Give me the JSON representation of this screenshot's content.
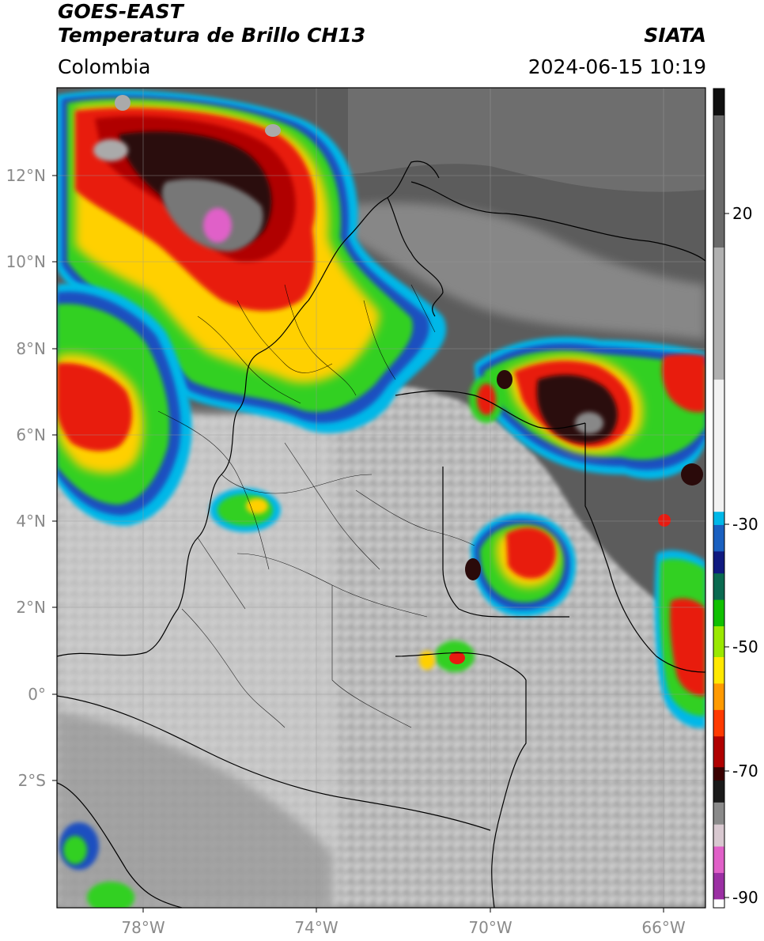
{
  "header": {
    "title_line1": "GOES-EAST",
    "title_line2": "Temperatura de Brillo CH13",
    "region": "Colombia",
    "brand": "SIATA",
    "timestamp": "2024-06-15 10:19"
  },
  "axes": {
    "lat_labels": [
      "12°N",
      "10°N",
      "8°N",
      "6°N",
      "4°N",
      "2°N",
      "0°",
      "2°S"
    ],
    "lon_labels": [
      "78°W",
      "74°W",
      "70°W",
      "66°W"
    ]
  },
  "colorbar": {
    "tick_labels": [
      "20",
      "-30",
      "-50",
      "-70",
      "-90"
    ],
    "palette": [
      "#ffffff",
      "#9b2fa3",
      "#e060c8",
      "#d8c8d0",
      "#8a8a8a",
      "#1a1a1a",
      "#3a0000",
      "#b00000",
      "#ff3a00",
      "#ff9a00",
      "#ffe800",
      "#9ae800",
      "#10c000",
      "#0a6a50",
      "#101a80",
      "#1a60c0",
      "#00b8e8",
      "#f2f2f2",
      "#b0b0b0",
      "#6a6a6a",
      "#101010"
    ]
  },
  "colors": {
    "cloud_cold": "#1a1a1a",
    "storm_red": "#d81818",
    "storm_yellow": "#ffd000",
    "storm_green": "#30d020",
    "storm_blue": "#1a50c0",
    "storm_cyan": "#00b8e8",
    "clear_sky": "#6a6a6a",
    "warm_cloud": "#d8d8d8",
    "border": "#000000"
  }
}
